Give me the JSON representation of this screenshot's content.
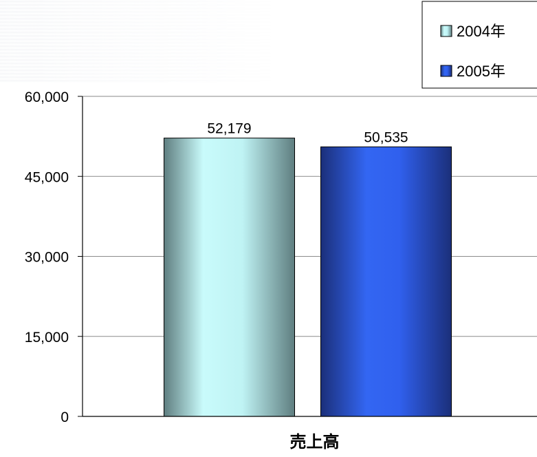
{
  "chart_data": {
    "type": "bar",
    "categories": [
      "売上高"
    ],
    "series": [
      {
        "name": "2004年",
        "values": [
          52179
        ],
        "value_labels": [
          "52,179"
        ],
        "color": "#2aa6a0"
      },
      {
        "name": "2005年",
        "values": [
          50535
        ],
        "value_labels": [
          "50,535"
        ],
        "color": "#2f5fe6"
      }
    ],
    "title": "",
    "xlabel": "",
    "ylabel": "",
    "ylim": [
      0,
      60000
    ],
    "yticks": [
      0,
      15000,
      30000,
      45000,
      60000
    ],
    "ytick_labels": [
      "0",
      "15,000",
      "30,000",
      "45,000",
      "60,000"
    ],
    "grid": true,
    "legend_position": "top-right"
  }
}
